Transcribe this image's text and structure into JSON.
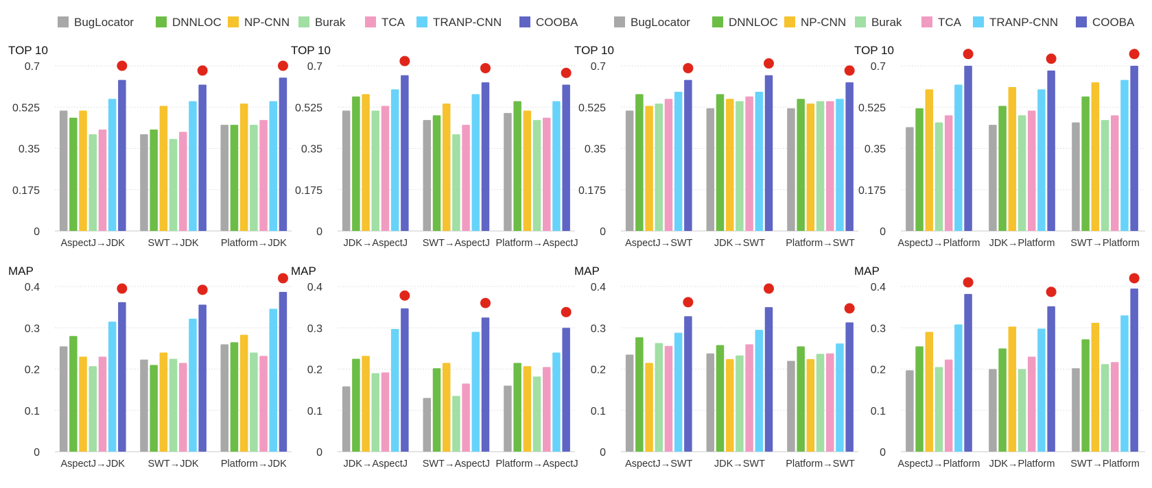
{
  "legend": [
    {
      "name": "BugLocator",
      "color": "#a8a8a8"
    },
    {
      "name": "DNNLOC",
      "color": "#6cbd45"
    },
    {
      "name": "NP-CNN",
      "color": "#f6c22d"
    },
    {
      "name": "Burak",
      "color": "#a1dfa4"
    },
    {
      "name": "TCA",
      "color": "#f29bc1"
    },
    {
      "name": "TRANP-CNN",
      "color": "#67d3fa"
    },
    {
      "name": "COOBA",
      "color": "#5f65c4"
    }
  ],
  "highlight_color": "#e0261b",
  "chart_data": [
    {
      "type": "bar",
      "title": "TOP 10",
      "ylim": [
        0,
        0.7
      ],
      "yticks": [
        "0",
        "0.175",
        "0.35",
        "0.525",
        "0.7"
      ],
      "categories": [
        "AspectJ→JDK",
        "SWT→JDK",
        "Platform→JDK"
      ],
      "values": [
        [
          0.51,
          0.48,
          0.51,
          0.41,
          0.43,
          0.56,
          0.64
        ],
        [
          0.41,
          0.43,
          0.53,
          0.39,
          0.42,
          0.55,
          0.62
        ],
        [
          0.45,
          0.45,
          0.54,
          0.45,
          0.47,
          0.55,
          0.65
        ]
      ],
      "markers": [
        0.7,
        0.68,
        0.7
      ]
    },
    {
      "type": "bar",
      "title": "TOP 10",
      "ylim": [
        0,
        0.7
      ],
      "yticks": [
        "0",
        "0.175",
        "0.35",
        "0.525",
        "0.7"
      ],
      "categories": [
        "JDK→AspectJ",
        "SWT→AspectJ",
        "Platform→AspectJ"
      ],
      "values": [
        [
          0.51,
          0.57,
          0.58,
          0.51,
          0.53,
          0.6,
          0.66
        ],
        [
          0.47,
          0.49,
          0.54,
          0.41,
          0.45,
          0.58,
          0.63
        ],
        [
          0.5,
          0.55,
          0.51,
          0.47,
          0.48,
          0.55,
          0.62
        ]
      ],
      "markers": [
        0.72,
        0.69,
        0.67
      ]
    },
    {
      "type": "bar",
      "title": "TOP 10",
      "ylim": [
        0,
        0.7
      ],
      "yticks": [
        "0",
        "0.175",
        "0.35",
        "0.525",
        "0.7"
      ],
      "categories": [
        "AspectJ→SWT",
        "JDK→SWT",
        "Platform→SWT"
      ],
      "values": [
        [
          0.51,
          0.58,
          0.53,
          0.54,
          0.56,
          0.59,
          0.64
        ],
        [
          0.52,
          0.58,
          0.56,
          0.55,
          0.57,
          0.59,
          0.66
        ],
        [
          0.52,
          0.56,
          0.54,
          0.55,
          0.55,
          0.56,
          0.63
        ]
      ],
      "markers": [
        0.69,
        0.71,
        0.68
      ]
    },
    {
      "type": "bar",
      "title": "TOP 10",
      "ylim": [
        0,
        0.7
      ],
      "yticks": [
        "0",
        "0.175",
        "0.35",
        "0.525",
        "0.7"
      ],
      "categories": [
        "AspectJ→Platform",
        "JDK→Platform",
        "SWT→Platform"
      ],
      "values": [
        [
          0.44,
          0.52,
          0.6,
          0.46,
          0.49,
          0.62,
          0.7
        ],
        [
          0.45,
          0.53,
          0.61,
          0.49,
          0.51,
          0.6,
          0.68
        ],
        [
          0.46,
          0.57,
          0.63,
          0.47,
          0.49,
          0.64,
          0.7
        ]
      ],
      "markers": [
        0.75,
        0.73,
        0.75
      ]
    },
    {
      "type": "bar",
      "title": "MAP",
      "ylim": [
        0,
        0.4
      ],
      "yticks": [
        "0",
        "0.1",
        "0.2",
        "0.3",
        "0.4"
      ],
      "categories": [
        "AspectJ→JDK",
        "SWT→JDK",
        "Platform→JDK"
      ],
      "values": [
        [
          0.255,
          0.28,
          0.23,
          0.207,
          0.23,
          0.315,
          0.362
        ],
        [
          0.223,
          0.21,
          0.24,
          0.225,
          0.215,
          0.322,
          0.356
        ],
        [
          0.26,
          0.265,
          0.283,
          0.24,
          0.232,
          0.346,
          0.387
        ]
      ],
      "markers": [
        0.395,
        0.392,
        0.42
      ]
    },
    {
      "type": "bar",
      "title": "MAP",
      "ylim": [
        0,
        0.4
      ],
      "yticks": [
        "0",
        "0.1",
        "0.2",
        "0.3",
        "0.4"
      ],
      "categories": [
        "JDK→AspectJ",
        "SWT→AspectJ",
        "Platform→AspectJ"
      ],
      "values": [
        [
          0.158,
          0.225,
          0.232,
          0.19,
          0.192,
          0.297,
          0.347
        ],
        [
          0.13,
          0.202,
          0.215,
          0.135,
          0.165,
          0.29,
          0.325
        ],
        [
          0.16,
          0.215,
          0.207,
          0.182,
          0.205,
          0.24,
          0.3
        ]
      ],
      "markers": [
        0.378,
        0.36,
        0.338
      ]
    },
    {
      "type": "bar",
      "title": "MAP",
      "ylim": [
        0,
        0.4
      ],
      "yticks": [
        "0",
        "0.1",
        "0.2",
        "0.3",
        "0.4"
      ],
      "categories": [
        "AspectJ→SWT",
        "JDK→SWT",
        "Platform→SWT"
      ],
      "values": [
        [
          0.235,
          0.277,
          0.215,
          0.263,
          0.256,
          0.288,
          0.328
        ],
        [
          0.238,
          0.258,
          0.224,
          0.233,
          0.26,
          0.295,
          0.35
        ],
        [
          0.22,
          0.255,
          0.224,
          0.237,
          0.238,
          0.262,
          0.313
        ]
      ],
      "markers": [
        0.362,
        0.395,
        0.347
      ]
    },
    {
      "type": "bar",
      "title": "MAP",
      "ylim": [
        0,
        0.4
      ],
      "yticks": [
        "0",
        "0.1",
        "0.2",
        "0.3",
        "0.4"
      ],
      "categories": [
        "AspectJ→Platform",
        "JDK→Platform",
        "SWT→Platform"
      ],
      "values": [
        [
          0.197,
          0.255,
          0.29,
          0.205,
          0.223,
          0.308,
          0.382
        ],
        [
          0.2,
          0.25,
          0.303,
          0.2,
          0.23,
          0.298,
          0.352
        ],
        [
          0.202,
          0.272,
          0.312,
          0.212,
          0.217,
          0.33,
          0.395
        ]
      ],
      "markers": [
        0.41,
        0.387,
        0.42
      ]
    }
  ]
}
